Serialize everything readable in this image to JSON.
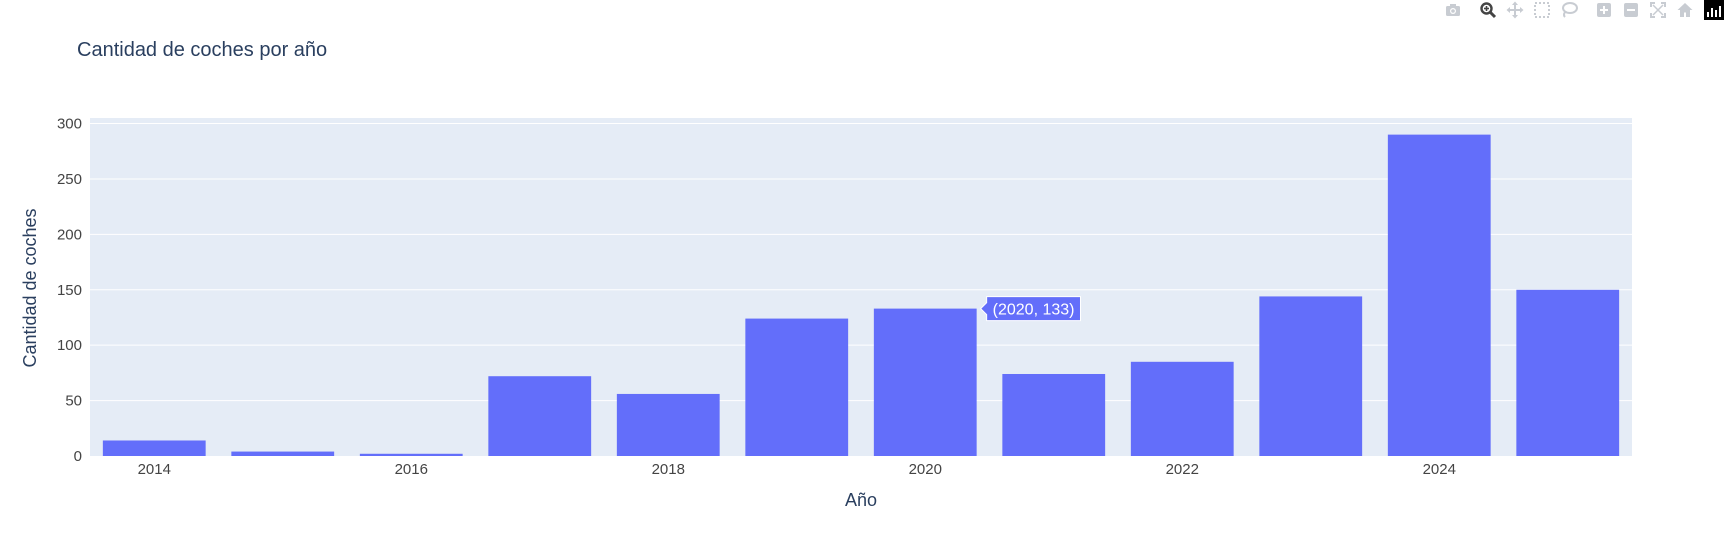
{
  "toolbar": {
    "buttons": [
      {
        "name": "camera-icon",
        "label": "Download plot as a png"
      },
      {
        "name": "zoom-icon",
        "label": "Zoom"
      },
      {
        "name": "pan-icon",
        "label": "Pan"
      },
      {
        "name": "box-select-icon",
        "label": "Box Select"
      },
      {
        "name": "lasso-select-icon",
        "label": "Lasso Select"
      },
      {
        "name": "zoom-in-icon",
        "label": "Zoom in"
      },
      {
        "name": "zoom-out-icon",
        "label": "Zoom out"
      },
      {
        "name": "autoscale-icon",
        "label": "Autoscale"
      },
      {
        "name": "reset-axes-icon",
        "label": "Reset axes"
      },
      {
        "name": "plotly-logo-icon",
        "label": "Produced with Plotly"
      }
    ],
    "active": "zoom-icon"
  },
  "colors": {
    "bar": "#636efa",
    "plot_bg": "#e5ecf6",
    "grid": "#ffffff",
    "text": "#2a3f5f",
    "tick_text": "#444444",
    "hover_text": "#ffffff"
  },
  "chart_data": {
    "type": "bar",
    "title": "Cantidad de coches por año",
    "xlabel": "Año",
    "ylabel": "Cantidad de coches",
    "x": [
      2014,
      2015,
      2016,
      2017,
      2018,
      2019,
      2020,
      2021,
      2022,
      2023,
      2024,
      2025
    ],
    "values": [
      14,
      4,
      2,
      72,
      56,
      124,
      133,
      74,
      85,
      144,
      290,
      150
    ],
    "xticks": [
      "2014",
      "2016",
      "2018",
      "2020",
      "2022",
      "2024"
    ],
    "ylim": [
      0,
      305
    ],
    "yticks": [
      0,
      50,
      100,
      150,
      200,
      250,
      300
    ],
    "grid": true,
    "hover": {
      "label": "(2020, 133)",
      "x": 2020,
      "y": 133
    }
  }
}
